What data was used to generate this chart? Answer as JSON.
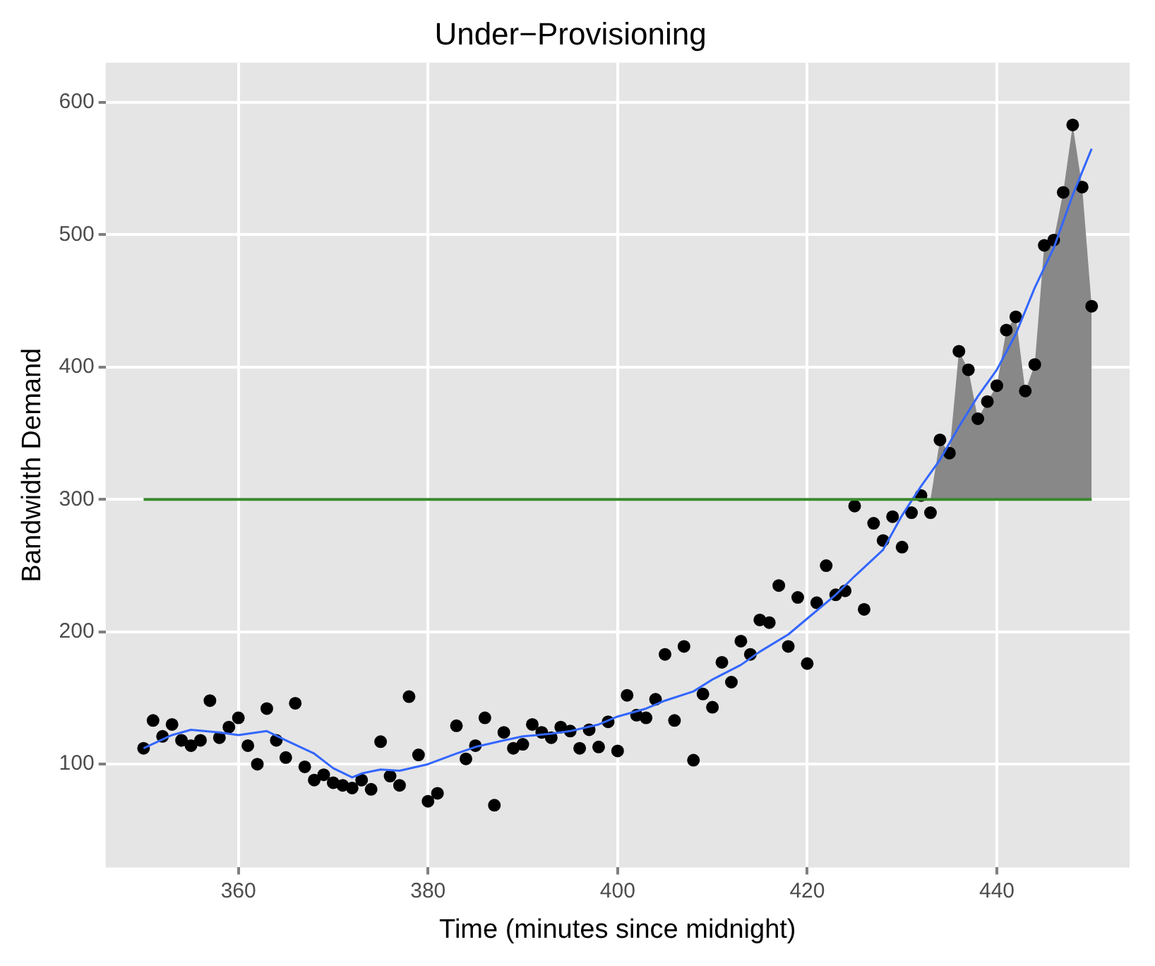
{
  "chart_data": {
    "type": "scatter",
    "title": "Under−Provisioning",
    "xlabel": "Time (minutes since midnight)",
    "ylabel": "Bandwidth Demand",
    "xlim": [
      346,
      454
    ],
    "ylim": [
      22,
      630
    ],
    "xticks": [
      360,
      380,
      400,
      420,
      440
    ],
    "yticks": [
      100,
      200,
      300,
      400,
      500,
      600
    ],
    "grid": true,
    "legend": false,
    "marker": "circle",
    "series": [
      {
        "type": "area",
        "marker": "none",
        "color": "#888888",
        "x": [
          432,
          433,
          434,
          435,
          436,
          437,
          438,
          439,
          440,
          441,
          442,
          443,
          444,
          445,
          446,
          447,
          448,
          449,
          450
        ],
        "values": [
          303,
          300,
          345,
          335,
          412,
          398,
          361,
          374,
          386,
          428,
          438,
          382,
          402,
          492,
          496,
          532,
          583,
          536,
          446
        ]
      },
      {
        "color": "#000000",
        "x": [
          350,
          351,
          352,
          353,
          354,
          355,
          356,
          357,
          358,
          359,
          360,
          361,
          362,
          363,
          364,
          365,
          366,
          367,
          368,
          369,
          370,
          371,
          372,
          373,
          374,
          375,
          376,
          377,
          378,
          379,
          380,
          381,
          383,
          384,
          385,
          386,
          387,
          388,
          389,
          390,
          391,
          392,
          393,
          394,
          395,
          396,
          397,
          398,
          399,
          400,
          401,
          402,
          403,
          404,
          405,
          406,
          407,
          408,
          409,
          410,
          411,
          412,
          413,
          414,
          415,
          416,
          417,
          418,
          419,
          420,
          421,
          422,
          423,
          424,
          425,
          426,
          427,
          428,
          429,
          430,
          431,
          432,
          433,
          434,
          435,
          436,
          437,
          438,
          439,
          440,
          441,
          442,
          443,
          444,
          445,
          446,
          447,
          448,
          449,
          450
        ],
        "values": [
          112,
          133,
          121,
          130,
          118,
          114,
          118,
          148,
          120,
          128,
          135,
          114,
          100,
          142,
          118,
          105,
          146,
          98,
          88,
          92,
          86,
          84,
          82,
          88,
          81,
          117,
          91,
          84,
          151,
          107,
          72,
          78,
          129,
          104,
          114,
          135,
          69,
          124,
          112,
          115,
          130,
          124,
          120,
          128,
          125,
          112,
          126,
          113,
          132,
          110,
          152,
          137,
          135,
          149,
          183,
          133,
          189,
          103,
          153,
          143,
          177,
          162,
          193,
          183,
          209,
          207,
          235,
          189,
          226,
          176,
          222,
          250,
          228,
          231,
          295,
          217,
          282,
          269,
          287,
          264,
          290,
          303,
          290,
          345,
          335,
          412,
          398,
          361,
          374,
          386,
          428,
          438,
          382,
          402,
          492,
          496,
          532,
          583,
          536,
          446
        ]
      },
      {
        "type": "line",
        "color": "#3366ff",
        "marker": "none",
        "x": [
          350,
          353,
          355,
          358,
          360,
          363,
          365,
          368,
          370,
          372,
          373,
          375,
          377,
          380,
          383,
          385,
          388,
          390,
          393,
          395,
          398,
          400,
          403,
          405,
          408,
          410,
          413,
          415,
          418,
          420,
          423,
          425,
          428,
          430,
          432,
          434,
          436,
          438,
          440,
          442,
          444,
          446,
          448,
          450
        ],
        "values": [
          112,
          122,
          126,
          124,
          122,
          125,
          118,
          108,
          97,
          90,
          93,
          96,
          95,
          100,
          108,
          113,
          118,
          121,
          123,
          125,
          130,
          136,
          142,
          148,
          155,
          164,
          175,
          185,
          198,
          210,
          228,
          242,
          262,
          288,
          310,
          330,
          355,
          378,
          398,
          425,
          460,
          490,
          530,
          565
        ]
      }
    ],
    "ref_lines": [
      {
        "axis": "y",
        "value": 300,
        "color": "#3a8a2e",
        "line_style": "solid"
      }
    ]
  }
}
